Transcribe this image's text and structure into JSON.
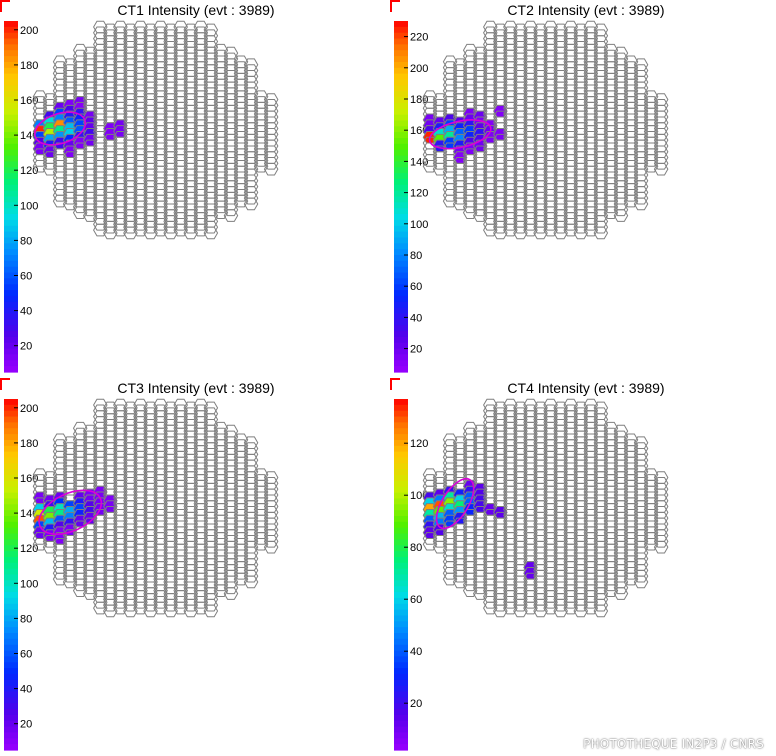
{
  "figure": {
    "credit": "PHOTOTHEQUE IN2P3 / CNRS",
    "colors": {
      "hex_edge": "#7f7f7f",
      "ellipse": "#d800d8",
      "frame_marker": "#ff0000"
    }
  },
  "chart_data": [
    {
      "type": "heatmap",
      "title": "CT1 Intensity (evt : 3989)",
      "colorbar": {
        "min": 5,
        "max": 205,
        "ticks": [
          20,
          40,
          60,
          80,
          100,
          120,
          140,
          160,
          180,
          200
        ]
      },
      "hillas_ellipse": {
        "center_hex": [
          2,
          17.5
        ],
        "semi_major_hex": 2.6,
        "semi_minor_hex": 1.6,
        "angle_deg": -18
      },
      "hits": [
        [
          3,
          13,
          12
        ],
        [
          4,
          13,
          14
        ],
        [
          2,
          14,
          18
        ],
        [
          3,
          14,
          28
        ],
        [
          4,
          14,
          10
        ],
        [
          1,
          15,
          30
        ],
        [
          2,
          15,
          55
        ],
        [
          3,
          15,
          40
        ],
        [
          4,
          15,
          35
        ],
        [
          5,
          15,
          15
        ],
        [
          1,
          16,
          95
        ],
        [
          2,
          16,
          70
        ],
        [
          3,
          16,
          60
        ],
        [
          4,
          16,
          45
        ],
        [
          5,
          16,
          22
        ],
        [
          0,
          17,
          70
        ],
        [
          1,
          17,
          120
        ],
        [
          2,
          17,
          185
        ],
        [
          3,
          17,
          85
        ],
        [
          4,
          17,
          55
        ],
        [
          5,
          17,
          20
        ],
        [
          7,
          17,
          12
        ],
        [
          8,
          17,
          15
        ],
        [
          0,
          18,
          200
        ],
        [
          1,
          18,
          150
        ],
        [
          2,
          18,
          110
        ],
        [
          3,
          18,
          90
        ],
        [
          4,
          18,
          60
        ],
        [
          5,
          18,
          30
        ],
        [
          7,
          18,
          12
        ],
        [
          8,
          18,
          14
        ],
        [
          0,
          19,
          55
        ],
        [
          1,
          19,
          80
        ],
        [
          2,
          19,
          75
        ],
        [
          3,
          19,
          50
        ],
        [
          4,
          19,
          35
        ],
        [
          5,
          19,
          16
        ],
        [
          0,
          20,
          25
        ],
        [
          1,
          20,
          40
        ],
        [
          2,
          20,
          30
        ],
        [
          3,
          20,
          20
        ],
        [
          4,
          20,
          12
        ],
        [
          0,
          21,
          14
        ],
        [
          1,
          21,
          18
        ],
        [
          3,
          21,
          12
        ]
      ]
    },
    {
      "type": "heatmap",
      "title": "CT2 Intensity (evt : 3989)",
      "colorbar": {
        "min": 5,
        "max": 230,
        "ticks": [
          20,
          40,
          60,
          80,
          100,
          120,
          140,
          160,
          180,
          200,
          220
        ]
      },
      "hillas_ellipse": {
        "center_hex": [
          3,
          18.5
        ],
        "semi_major_hex": 3.1,
        "semi_minor_hex": 1.4,
        "angle_deg": -12
      },
      "hits": [
        [
          4,
          15,
          14
        ],
        [
          5,
          15,
          20
        ],
        [
          7,
          14,
          12
        ],
        [
          0,
          16,
          16
        ],
        [
          1,
          16,
          22
        ],
        [
          2,
          16,
          30
        ],
        [
          3,
          16,
          25
        ],
        [
          4,
          16,
          20
        ],
        [
          5,
          16,
          14
        ],
        [
          0,
          17,
          18
        ],
        [
          1,
          17,
          45
        ],
        [
          2,
          17,
          60
        ],
        [
          3,
          17,
          50
        ],
        [
          4,
          17,
          40
        ],
        [
          5,
          17,
          25
        ],
        [
          6,
          17,
          12
        ],
        [
          0,
          18,
          30
        ],
        [
          1,
          18,
          110
        ],
        [
          2,
          18,
          90
        ],
        [
          3,
          18,
          70
        ],
        [
          4,
          18,
          60
        ],
        [
          5,
          18,
          40
        ],
        [
          6,
          18,
          20
        ],
        [
          7,
          18,
          14
        ],
        [
          0,
          19,
          225
        ],
        [
          1,
          19,
          150
        ],
        [
          2,
          19,
          120
        ],
        [
          3,
          19,
          80
        ],
        [
          4,
          19,
          50
        ],
        [
          5,
          19,
          30
        ],
        [
          6,
          19,
          14
        ],
        [
          1,
          20,
          40
        ],
        [
          2,
          20,
          60
        ],
        [
          3,
          20,
          45
        ],
        [
          4,
          20,
          30
        ],
        [
          5,
          20,
          18
        ],
        [
          3,
          21,
          16
        ],
        [
          4,
          21,
          14
        ],
        [
          3,
          22,
          12
        ]
      ]
    },
    {
      "type": "heatmap",
      "title": "CT3 Intensity (evt : 3989)",
      "colorbar": {
        "min": 5,
        "max": 205,
        "ticks": [
          20,
          40,
          60,
          80,
          100,
          120,
          140,
          160,
          180,
          200
        ]
      },
      "hillas_ellipse": {
        "center_hex": [
          3,
          18.5
        ],
        "semi_major_hex": 3.3,
        "semi_minor_hex": 2.0,
        "angle_deg": -25
      },
      "hits": [
        [
          5,
          15,
          14
        ],
        [
          6,
          15,
          12
        ],
        [
          0,
          16,
          14
        ],
        [
          1,
          16,
          16
        ],
        [
          2,
          16,
          18
        ],
        [
          4,
          16,
          20
        ],
        [
          5,
          16,
          16
        ],
        [
          6,
          16,
          14
        ],
        [
          7,
          16,
          12
        ],
        [
          1,
          17,
          30
        ],
        [
          2,
          17,
          50
        ],
        [
          3,
          17,
          55
        ],
        [
          4,
          17,
          40
        ],
        [
          5,
          17,
          25
        ],
        [
          6,
          17,
          16
        ],
        [
          7,
          17,
          14
        ],
        [
          0,
          18,
          90
        ],
        [
          1,
          18,
          120
        ],
        [
          2,
          18,
          100
        ],
        [
          3,
          18,
          80
        ],
        [
          4,
          18,
          55
        ],
        [
          5,
          18,
          30
        ],
        [
          6,
          18,
          16
        ],
        [
          0,
          19,
          155
        ],
        [
          1,
          19,
          140
        ],
        [
          2,
          19,
          110
        ],
        [
          3,
          19,
          70
        ],
        [
          4,
          19,
          45
        ],
        [
          5,
          19,
          20
        ],
        [
          0,
          20,
          195
        ],
        [
          1,
          20,
          85
        ],
        [
          2,
          20,
          60
        ],
        [
          3,
          20,
          35
        ],
        [
          4,
          20,
          20
        ],
        [
          0,
          21,
          55
        ],
        [
          1,
          21,
          40
        ],
        [
          2,
          21,
          25
        ],
        [
          3,
          21,
          14
        ],
        [
          0,
          22,
          18
        ],
        [
          1,
          22,
          14
        ],
        [
          2,
          22,
          12
        ],
        [
          2,
          23,
          12
        ]
      ]
    },
    {
      "type": "heatmap",
      "title": "CT4 Intensity (evt : 3989)",
      "colorbar": {
        "min": 2,
        "max": 137,
        "ticks": [
          20,
          40,
          60,
          80,
          100,
          120
        ]
      },
      "hillas_ellipse": {
        "center_hex": [
          2.5,
          17
        ],
        "semi_major_hex": 2.8,
        "semi_minor_hex": 1.4,
        "angle_deg": -58
      },
      "hits": [
        [
          4,
          14,
          12
        ],
        [
          5,
          14,
          14
        ],
        [
          1,
          15,
          14
        ],
        [
          2,
          15,
          20
        ],
        [
          3,
          15,
          28
        ],
        [
          4,
          15,
          22
        ],
        [
          5,
          15,
          16
        ],
        [
          0,
          16,
          18
        ],
        [
          1,
          16,
          45
        ],
        [
          2,
          16,
          70
        ],
        [
          3,
          16,
          60
        ],
        [
          4,
          16,
          40
        ],
        [
          5,
          16,
          18
        ],
        [
          0,
          17,
          60
        ],
        [
          1,
          17,
          130
        ],
        [
          2,
          17,
          95
        ],
        [
          3,
          17,
          75
        ],
        [
          4,
          17,
          40
        ],
        [
          5,
          17,
          18
        ],
        [
          0,
          18,
          120
        ],
        [
          1,
          18,
          90
        ],
        [
          2,
          18,
          65
        ],
        [
          3,
          18,
          50
        ],
        [
          4,
          18,
          30
        ],
        [
          6,
          18,
          12
        ],
        [
          7,
          18,
          14
        ],
        [
          0,
          19,
          70
        ],
        [
          1,
          19,
          55
        ],
        [
          2,
          19,
          40
        ],
        [
          3,
          19,
          25
        ],
        [
          0,
          20,
          40
        ],
        [
          1,
          20,
          45
        ],
        [
          2,
          20,
          35
        ],
        [
          0,
          21,
          22
        ],
        [
          1,
          21,
          16
        ],
        [
          0,
          22,
          14
        ],
        [
          10,
          28,
          12
        ],
        [
          10,
          29,
          12
        ]
      ]
    }
  ]
}
